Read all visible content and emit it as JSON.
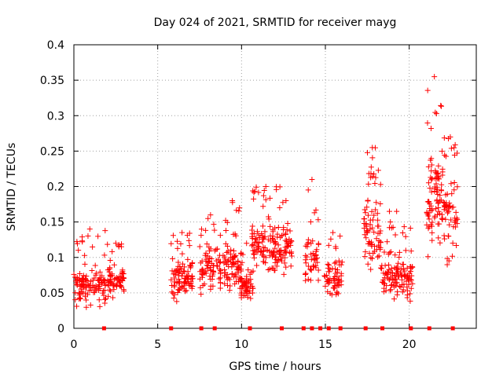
{
  "chart_data": {
    "type": "scatter",
    "title": "Day 024 of 2021, SRMTID for receiver mayg",
    "xlabel": "GPS time / hours",
    "ylabel": "SRMTID / TECUs",
    "xlim": [
      0,
      24
    ],
    "ylim": [
      0,
      0.4
    ],
    "xticks": [
      0,
      5,
      10,
      15,
      20
    ],
    "xtick_labels": [
      "0",
      "5",
      "10",
      "15",
      "20"
    ],
    "yticks": [
      0,
      0.05,
      0.1,
      0.15,
      0.2,
      0.25,
      0.3,
      0.35,
      0.4
    ],
    "ytick_labels": [
      "0",
      "0.05",
      "0.1",
      "0.15",
      "0.2",
      "0.25",
      "0.3",
      "0.35",
      "0.4"
    ],
    "grid": true,
    "marker": "plus",
    "color": "#ff0000",
    "point_clusters": [
      {
        "x_start": 0.0,
        "x_end": 1.9,
        "y_low": 0.02,
        "y_high": 0.1,
        "y_peak": 0.14,
        "count": 120
      },
      {
        "x_start": 2.0,
        "x_end": 3.0,
        "y_low": 0.035,
        "y_high": 0.1,
        "y_peak": 0.12,
        "count": 70
      },
      {
        "x_start": 5.8,
        "x_end": 7.1,
        "y_low": 0.03,
        "y_high": 0.11,
        "y_peak": 0.135,
        "count": 95
      },
      {
        "x_start": 7.5,
        "x_end": 8.8,
        "y_low": 0.04,
        "y_high": 0.13,
        "y_peak": 0.16,
        "count": 80
      },
      {
        "x_start": 8.9,
        "x_end": 10.0,
        "y_low": 0.04,
        "y_high": 0.13,
        "y_peak": 0.18,
        "count": 80
      },
      {
        "x_start": 9.9,
        "x_end": 10.7,
        "y_low": 0.025,
        "y_high": 0.09,
        "y_peak": 0.12,
        "count": 55
      },
      {
        "x_start": 10.6,
        "x_end": 12.3,
        "y_low": 0.06,
        "y_high": 0.17,
        "y_peak": 0.2,
        "count": 120
      },
      {
        "x_start": 12.3,
        "x_end": 13.0,
        "y_low": 0.07,
        "y_high": 0.17,
        "y_peak": 0.18,
        "count": 45
      },
      {
        "x_start": 13.8,
        "x_end": 14.6,
        "y_low": 0.05,
        "y_high": 0.15,
        "y_peak": 0.21,
        "count": 50
      },
      {
        "x_start": 14.9,
        "x_end": 16.0,
        "y_low": 0.03,
        "y_high": 0.11,
        "y_peak": 0.135,
        "count": 65
      },
      {
        "x_start": 17.3,
        "x_end": 18.3,
        "y_low": 0.07,
        "y_high": 0.2,
        "y_peak": 0.255,
        "count": 80
      },
      {
        "x_start": 18.3,
        "x_end": 20.2,
        "y_low": 0.03,
        "y_high": 0.12,
        "y_peak": 0.165,
        "count": 130
      },
      {
        "x_start": 21.0,
        "x_end": 22.0,
        "y_low": 0.08,
        "y_high": 0.28,
        "y_peak": 0.355,
        "count": 90
      },
      {
        "x_start": 22.0,
        "x_end": 22.9,
        "y_low": 0.06,
        "y_high": 0.24,
        "y_peak": 0.27,
        "count": 60
      }
    ],
    "baseline_points_x": [
      1.8,
      5.8,
      7.6,
      8.4,
      10.5,
      12.4,
      13.7,
      14.2,
      14.7,
      15.2,
      15.9,
      17.4,
      18.4,
      20.1,
      21.2,
      22.6
    ],
    "baseline_points_y": 0
  }
}
